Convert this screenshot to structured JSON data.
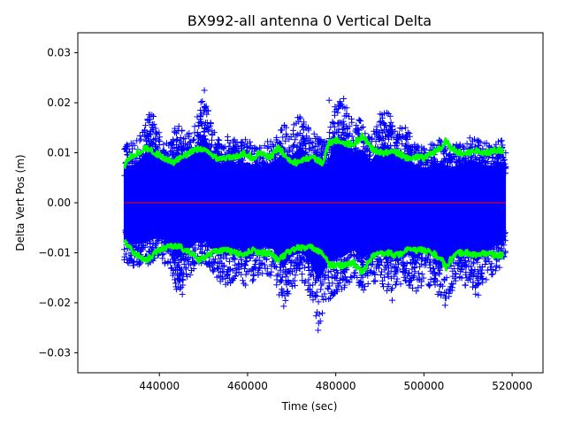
{
  "chart_data": {
    "type": "scatter",
    "title": "BX992-all antenna 0 Vertical Delta",
    "xlabel": "Time (sec)",
    "ylabel": "Delta Vert Pos (m)",
    "xlim": [
      421500,
      527000
    ],
    "ylim": [
      -0.034,
      0.034
    ],
    "x_ticks": [
      440000,
      460000,
      480000,
      500000,
      520000
    ],
    "x_tick_labels": [
      "440000",
      "460000",
      "480000",
      "500000",
      "520000"
    ],
    "y_ticks": [
      -0.03,
      -0.02,
      -0.01,
      0.0,
      0.01,
      0.02,
      0.03
    ],
    "y_tick_labels": [
      "−0.03",
      "−0.02",
      "−0.01",
      "0.00",
      "0.01",
      "0.02",
      "0.03"
    ],
    "grid": false,
    "legend": false,
    "data_range_x": [
      432000,
      518600
    ],
    "series": [
      {
        "kind": "scatter",
        "marker": "+",
        "color": "#0000ff",
        "envelope": {
          "x": [
            432000,
            434000,
            436000,
            438000,
            440000,
            442000,
            444000,
            446000,
            448000,
            450000,
            452000,
            454000,
            456000,
            458000,
            460000,
            462000,
            464000,
            466000,
            468000,
            470000,
            472000,
            474000,
            476000,
            478000,
            480000,
            482000,
            484000,
            486000,
            488000,
            490000,
            492000,
            494000,
            496000,
            498000,
            500000,
            502000,
            504000,
            506000,
            508000,
            510000,
            512000,
            514000,
            516000,
            518600
          ],
          "upper": [
            0.012,
            0.012,
            0.014,
            0.019,
            0.014,
            0.012,
            0.016,
            0.014,
            0.016,
            0.022,
            0.016,
            0.012,
            0.014,
            0.012,
            0.013,
            0.011,
            0.012,
            0.013,
            0.016,
            0.015,
            0.018,
            0.015,
            0.013,
            0.012,
            0.02,
            0.021,
            0.016,
            0.017,
            0.013,
            0.018,
            0.018,
            0.016,
            0.015,
            0.012,
            0.011,
            0.012,
            0.013,
            0.011,
            0.012,
            0.013,
            0.013,
            0.012,
            0.012,
            0.013
          ],
          "lower": [
            -0.012,
            -0.013,
            -0.013,
            -0.012,
            -0.011,
            -0.013,
            -0.018,
            -0.016,
            -0.013,
            -0.012,
            -0.014,
            -0.016,
            -0.017,
            -0.014,
            -0.018,
            -0.015,
            -0.014,
            -0.015,
            -0.021,
            -0.017,
            -0.016,
            -0.018,
            -0.025,
            -0.02,
            -0.018,
            -0.017,
            -0.015,
            -0.018,
            -0.016,
            -0.016,
            -0.018,
            -0.017,
            -0.016,
            -0.018,
            -0.016,
            -0.017,
            -0.021,
            -0.019,
            -0.016,
            -0.017,
            -0.019,
            -0.016,
            -0.014,
            -0.012
          ]
        },
        "outliers": [
          {
            "x": 450200,
            "y": 0.0225
          },
          {
            "x": 478500,
            "y": 0.0205
          },
          {
            "x": 481800,
            "y": 0.0208
          },
          {
            "x": 476000,
            "y": -0.0255
          },
          {
            "x": 468200,
            "y": -0.0207
          },
          {
            "x": 504800,
            "y": -0.0205
          },
          {
            "x": 445200,
            "y": -0.0183
          },
          {
            "x": 492800,
            "y": -0.0195
          }
        ]
      },
      {
        "kind": "line",
        "color": "#00ff00",
        "x": [
          432000,
          433000,
          435000,
          437000,
          439000,
          441000,
          443000,
          445000,
          447000,
          449000,
          451000,
          453000,
          455000,
          457000,
          459000,
          461000,
          463000,
          465000,
          467000,
          469000,
          471000,
          473000,
          475000,
          477000,
          478500,
          480000,
          482000,
          484000,
          486000,
          488000,
          490000,
          492000,
          494000,
          496000,
          498000,
          500000,
          502000,
          504000,
          505000,
          506000,
          508000,
          510000,
          512000,
          514000,
          516000,
          518000
        ],
        "upper": [
          0.007,
          0.009,
          0.01,
          0.011,
          0.01,
          0.009,
          0.008,
          0.009,
          0.01,
          0.011,
          0.01,
          0.009,
          0.009,
          0.009,
          0.01,
          0.009,
          0.01,
          0.009,
          0.011,
          0.009,
          0.008,
          0.009,
          0.009,
          0.008,
          0.012,
          0.0125,
          0.012,
          0.0115,
          0.0135,
          0.011,
          0.01,
          0.01,
          0.01,
          0.009,
          0.009,
          0.009,
          0.01,
          0.011,
          0.0125,
          0.011,
          0.01,
          0.01,
          0.0105,
          0.01,
          0.0105,
          0.0105
        ],
        "lower": [
          -0.007,
          -0.009,
          -0.0105,
          -0.0115,
          -0.01,
          -0.009,
          -0.0085,
          -0.009,
          -0.01,
          -0.0115,
          -0.0105,
          -0.0095,
          -0.0095,
          -0.01,
          -0.0105,
          -0.0095,
          -0.01,
          -0.01,
          -0.0115,
          -0.01,
          -0.009,
          -0.009,
          -0.009,
          -0.01,
          -0.0125,
          -0.0125,
          -0.0125,
          -0.012,
          -0.014,
          -0.011,
          -0.01,
          -0.01,
          -0.0105,
          -0.0095,
          -0.0095,
          -0.0095,
          -0.01,
          -0.0115,
          -0.013,
          -0.0115,
          -0.01,
          -0.01,
          -0.0105,
          -0.01,
          -0.0105,
          -0.0105
        ]
      },
      {
        "kind": "line",
        "color": "#ff0000",
        "x": [
          432000,
          518600
        ],
        "y": [
          0.0,
          0.0
        ]
      }
    ]
  }
}
